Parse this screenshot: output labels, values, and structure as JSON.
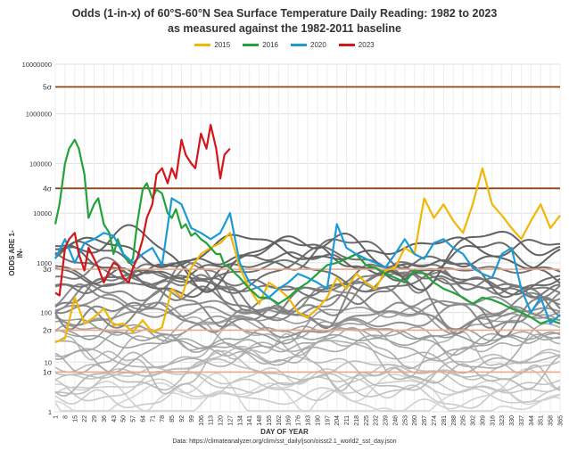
{
  "chart_data": {
    "type": "line",
    "title": "Odds (1-in-x) of 60°S-60°N Sea Surface Temperature Daily Reading: 1982 to 2023",
    "subtitle": "as measured against the 1982-2011 baseline",
    "xlabel": "DAY OF YEAR",
    "ylabel": "ODDS ARE 1-IN-",
    "source": "Data: https://climateanalyzer.org/clim/sst_daily/json/oisst2.1_world2_sst_day.json",
    "y_scale": "log",
    "ylim": [
      1,
      10000000
    ],
    "xlim": [
      1,
      365
    ],
    "y_ticks": [
      "1",
      "10",
      "100",
      "1000",
      "10000",
      "100000",
      "1000000",
      "10000000"
    ],
    "x_ticks": [
      "1",
      "8",
      "15",
      "22",
      "29",
      "36",
      "43",
      "50",
      "57",
      "64",
      "71",
      "78",
      "85",
      "92",
      "99",
      "106",
      "113",
      "120",
      "127",
      "134",
      "141",
      "148",
      "155",
      "162",
      "169",
      "176",
      "183",
      "190",
      "197",
      "204",
      "211",
      "218",
      "225",
      "232",
      "239",
      "246",
      "253",
      "260",
      "267",
      "274",
      "281",
      "288",
      "295",
      "302",
      "309",
      "316",
      "323",
      "330",
      "337",
      "344",
      "351",
      "358",
      "365"
    ],
    "sigma_lines": [
      {
        "label": "1σ",
        "value": 6.3
      },
      {
        "label": "2σ",
        "value": 44
      },
      {
        "label": "3σ",
        "value": 741
      },
      {
        "label": "4σ",
        "value": 31574
      },
      {
        "label": "5σ",
        "value": 3488556
      }
    ],
    "legend_position": "top",
    "series": [
      {
        "name": "2015",
        "color": "#f2b705",
        "x": [
          1,
          8,
          15,
          22,
          29,
          36,
          43,
          50,
          57,
          64,
          71,
          78,
          85,
          92,
          99,
          106,
          113,
          120,
          127,
          134,
          141,
          148,
          155,
          162,
          169,
          176,
          183,
          190,
          197,
          204,
          211,
          218,
          225,
          232,
          239,
          246,
          253,
          260,
          267,
          274,
          281,
          288,
          295,
          302,
          309,
          316,
          323,
          330,
          337,
          344,
          351,
          358,
          365
        ],
        "y": [
          25,
          30,
          200,
          60,
          80,
          120,
          55,
          60,
          40,
          70,
          40,
          50,
          300,
          200,
          800,
          1500,
          2000,
          2500,
          4000,
          800,
          300,
          150,
          400,
          300,
          200,
          100,
          80,
          120,
          200,
          500,
          300,
          600,
          400,
          300,
          700,
          800,
          2000,
          1500,
          20000,
          8000,
          15000,
          7000,
          4000,
          15000,
          80000,
          15000,
          9000,
          5000,
          3000,
          7000,
          15000,
          5000,
          9000
        ]
      },
      {
        "name": "2016",
        "color": "#22a33a",
        "x": [
          1,
          4,
          8,
          11,
          15,
          18,
          22,
          25,
          29,
          32,
          36,
          40,
          43,
          46,
          50,
          54,
          57,
          60,
          64,
          67,
          71,
          74,
          78,
          82,
          85,
          88,
          92,
          95,
          99,
          102,
          106,
          110,
          113,
          117,
          120,
          123,
          127,
          131,
          134,
          141,
          148,
          155,
          162,
          169,
          176,
          183,
          190,
          197,
          204,
          211,
          218,
          225,
          232,
          239,
          246,
          253,
          260,
          267,
          274,
          281,
          288,
          295,
          302,
          309,
          316,
          323,
          330,
          337,
          344,
          351,
          358,
          365
        ],
        "y": [
          6000,
          15000,
          100000,
          200000,
          300000,
          200000,
          60000,
          8000,
          15000,
          20000,
          6000,
          4000,
          1500,
          3000,
          1500,
          1000,
          1200,
          6000,
          30000,
          40000,
          20000,
          30000,
          25000,
          10000,
          8000,
          12000,
          5000,
          6000,
          3500,
          4000,
          3000,
          2500,
          2000,
          1500,
          1500,
          900,
          800,
          600,
          500,
          300,
          200,
          200,
          150,
          200,
          300,
          400,
          600,
          900,
          1000,
          1200,
          1500,
          900,
          800,
          600,
          500,
          400,
          700,
          600,
          400,
          300,
          250,
          200,
          150,
          200,
          180,
          150,
          120,
          100,
          80,
          60,
          70,
          60
        ]
      },
      {
        "name": "2020",
        "color": "#1b9ad6",
        "x": [
          1,
          8,
          15,
          22,
          29,
          36,
          43,
          50,
          57,
          64,
          71,
          78,
          85,
          92,
          99,
          106,
          113,
          120,
          127,
          134,
          141,
          148,
          155,
          162,
          169,
          176,
          183,
          190,
          197,
          204,
          211,
          218,
          225,
          232,
          239,
          246,
          253,
          260,
          267,
          274,
          281,
          288,
          295,
          302,
          309,
          316,
          323,
          330,
          337,
          344,
          351,
          358,
          365
        ],
        "y": [
          1200,
          3000,
          1000,
          2500,
          3000,
          4000,
          3500,
          1500,
          1000,
          1500,
          2000,
          900,
          20000,
          15000,
          5000,
          4000,
          3000,
          4000,
          10000,
          1000,
          400,
          300,
          200,
          300,
          400,
          600,
          500,
          400,
          300,
          6000,
          2000,
          1500,
          1200,
          1000,
          800,
          1500,
          3000,
          1500,
          1200,
          2500,
          3000,
          2000,
          1500,
          800,
          600,
          500,
          1500,
          2000,
          300,
          100,
          200,
          60,
          90
        ]
      },
      {
        "name": "2023",
        "color": "#d4161b",
        "x": [
          1,
          4,
          8,
          11,
          15,
          18,
          22,
          25,
          29,
          32,
          36,
          40,
          43,
          46,
          50,
          54,
          57,
          60,
          64,
          67,
          71,
          74,
          78,
          82,
          85,
          88,
          92,
          95,
          99,
          102,
          106,
          110,
          113,
          117,
          120,
          123,
          127
        ],
        "y": [
          250,
          220,
          2000,
          3000,
          4000,
          1500,
          700,
          2000,
          1200,
          800,
          400,
          700,
          1000,
          900,
          500,
          400,
          800,
          1200,
          3000,
          8000,
          15000,
          60000,
          80000,
          40000,
          80000,
          50000,
          300000,
          150000,
          100000,
          80000,
          400000,
          200000,
          600000,
          200000,
          50000,
          150000,
          200000
        ]
      }
    ],
    "background_years_count": 38
  }
}
